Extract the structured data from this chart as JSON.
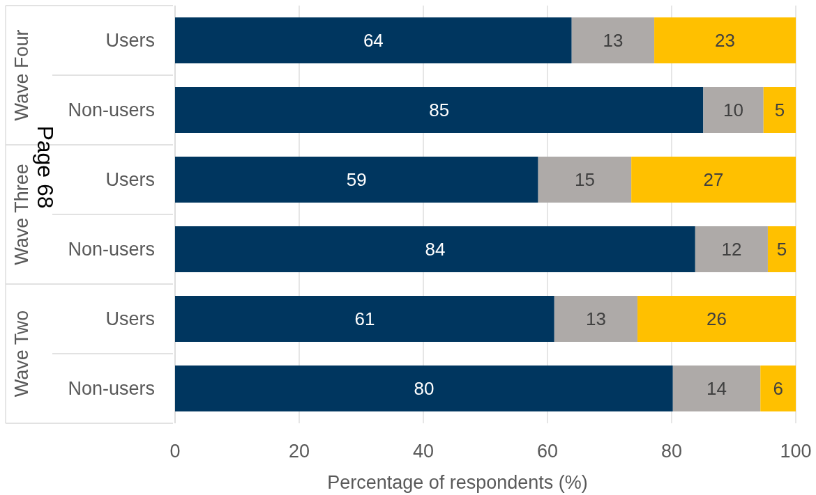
{
  "chart_data": {
    "type": "bar",
    "orientation": "horizontal",
    "stacked": true,
    "categories": [
      "Users",
      "Non-users",
      "Users",
      "Non-users",
      "Users",
      "Non-users"
    ],
    "series": [
      {
        "color": "#00365f",
        "values": [
          63.9,
          85.1,
          58.5,
          83.8,
          61.1,
          80.2
        ],
        "value_labels": [
          "64",
          "85",
          "59",
          "84",
          "61",
          "80"
        ]
      },
      {
        "color": "#aeaaa8",
        "values": [
          13.3,
          9.7,
          15,
          11.7,
          13.4,
          14.1
        ],
        "value_labels": [
          "13",
          "10",
          "15",
          "12",
          "13",
          "14"
        ]
      },
      {
        "color": "#ffc000",
        "values": [
          22.8,
          5.2,
          26.5,
          4.5,
          25.5,
          5.7
        ],
        "value_labels": [
          "23",
          "5",
          "27",
          "5",
          "26",
          "6"
        ]
      }
    ],
    "xlim": [
      0,
      100
    ],
    "xticks": [
      0,
      20,
      40,
      60,
      80,
      100
    ],
    "grid": "x",
    "xlabel": "Percentage of respondents (%)",
    "annotations": [
      "Wave Four",
      "Wave Three",
      "Wave Two",
      "Page 68"
    ]
  }
}
